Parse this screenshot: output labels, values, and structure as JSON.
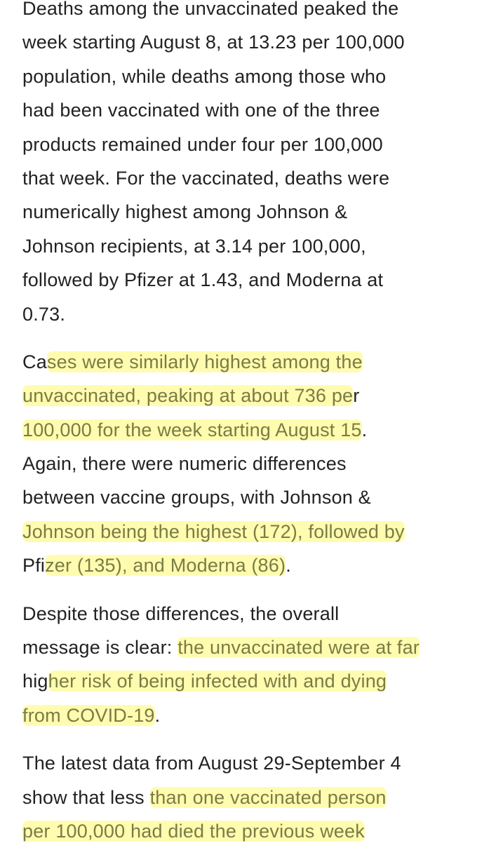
{
  "paragraphs": [
    {
      "lines": [
        [
          {
            "text": "Deaths among the unvaccinated peaked the",
            "highlighted": false
          }
        ],
        [
          {
            "text": "week starting August 8, at 13.23 per 100,000",
            "highlighted": false
          }
        ],
        [
          {
            "text": "population, while deaths among those who",
            "highlighted": false
          }
        ],
        [
          {
            "text": "had been vaccinated with one of the three",
            "highlighted": false
          }
        ],
        [
          {
            "text": "products remained under four per 100,000",
            "highlighted": false
          }
        ],
        [
          {
            "text": "that week. For the vaccinated, deaths were",
            "highlighted": false
          }
        ],
        [
          {
            "text": "numerically highest among Johnson &",
            "highlighted": false
          }
        ],
        [
          {
            "text": "Johnson recipients, at 3.14 per 100,000,",
            "highlighted": false
          }
        ],
        [
          {
            "text": "followed by Pfizer at 1.43, and Moderna at",
            "highlighted": false
          }
        ],
        [
          {
            "text": "0.73.",
            "highlighted": false
          }
        ]
      ]
    },
    {
      "lines": [
        [
          {
            "text": "Ca",
            "highlighted": false
          },
          {
            "text": "ses were similarly highest among the",
            "highlighted": true
          }
        ],
        [
          {
            "text": "unvaccinated, peaking at about 736 pe",
            "highlighted": true
          },
          {
            "text": "r",
            "highlighted": false
          }
        ],
        [
          {
            "text": "100,000 for the week starting August 15",
            "highlighted": true
          },
          {
            "text": ".",
            "highlighted": false
          }
        ],
        [
          {
            "text": "Again, there were numeric differences",
            "highlighted": false
          }
        ],
        [
          {
            "text": "between vaccine groups, with Johnson &",
            "highlighted": false
          }
        ],
        [
          {
            "text": "Johnson being the highest (172), followed by",
            "highlighted": true
          }
        ],
        [
          {
            "text": "Pfi",
            "highlighted": false
          },
          {
            "text": "zer (135), and Moderna (86)",
            "highlighted": true
          },
          {
            "text": ".",
            "highlighted": false
          }
        ]
      ]
    },
    {
      "lines": [
        [
          {
            "text": "Despite those differences, the overall",
            "highlighted": false
          }
        ],
        [
          {
            "text": "message is clear: ",
            "highlighted": false
          },
          {
            "text": "the unvaccinated were at far",
            "highlighted": true
          }
        ],
        [
          {
            "text": "hig",
            "highlighted": false
          },
          {
            "text": "her risk of being infected with and dying",
            "highlighted": true
          }
        ],
        [
          {
            "text": "from COVID-19",
            "highlighted": true
          },
          {
            "text": ".",
            "highlighted": false
          }
        ]
      ]
    },
    {
      "lines": [
        [
          {
            "text": "The latest data from August 29-September 4",
            "highlighted": false
          }
        ],
        [
          {
            "text": "show that less ",
            "highlighted": false
          },
          {
            "text": "than one vaccinated person",
            "highlighted": true
          }
        ],
        [
          {
            "text": "per 100,000 had died the previous week",
            "highlighted": true
          }
        ]
      ]
    }
  ]
}
